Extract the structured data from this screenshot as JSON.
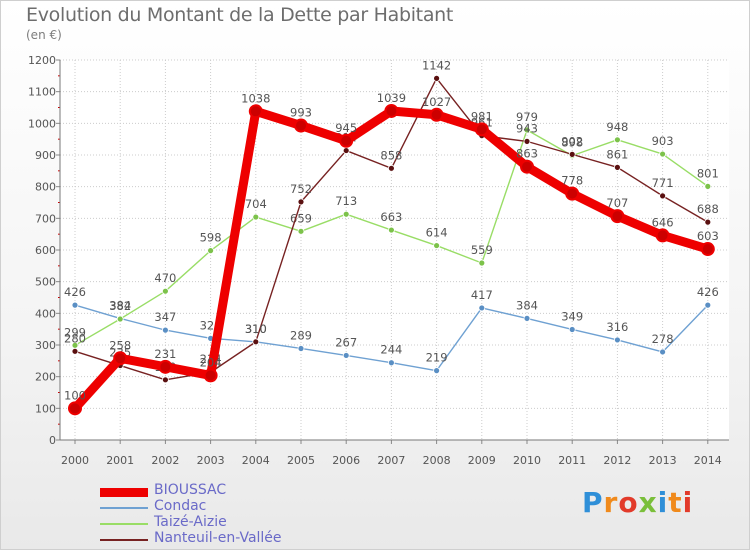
{
  "chart_data": {
    "type": "line",
    "title": "Evolution du Montant de la Dette par Habitant",
    "subtitle": "(en €)",
    "x": [
      "2000",
      "2001",
      "2002",
      "2003",
      "2004",
      "2005",
      "2006",
      "2007",
      "2008",
      "2009",
      "2010",
      "2011",
      "2012",
      "2013",
      "2014"
    ],
    "ylim": [
      0,
      1200
    ],
    "yticks": [
      0,
      100,
      200,
      300,
      400,
      500,
      600,
      700,
      800,
      900,
      1000,
      1100,
      1200
    ],
    "grid": true,
    "legend_position": "bottom-left",
    "series": [
      {
        "name": "BIOUSSAC",
        "color": "#ee0000",
        "values": [
          100,
          258,
          231,
          204,
          1038,
          993,
          945,
          1039,
          1027,
          981,
          863,
          778,
          707,
          646,
          603
        ]
      },
      {
        "name": "Condac",
        "color": "#6fa1d2",
        "values": [
          426,
          384,
          347,
          321,
          310,
          289,
          267,
          244,
          219,
          417,
          384,
          349,
          316,
          278,
          426
        ]
      },
      {
        "name": "Taizé-Aizie",
        "color": "#99dd66",
        "values": [
          299,
          382,
          470,
          598,
          704,
          659,
          713,
          663,
          614,
          559,
          979,
          898,
          948,
          903,
          801
        ]
      },
      {
        "name": "Nanteuil-en-Vallée",
        "color": "#772222",
        "values": [
          280,
          235,
          190,
          214,
          310,
          752,
          914,
          858,
          1142,
          961,
          943,
          902,
          861,
          771,
          688
        ]
      }
    ]
  },
  "logo": {
    "text": "Proxiti"
  }
}
